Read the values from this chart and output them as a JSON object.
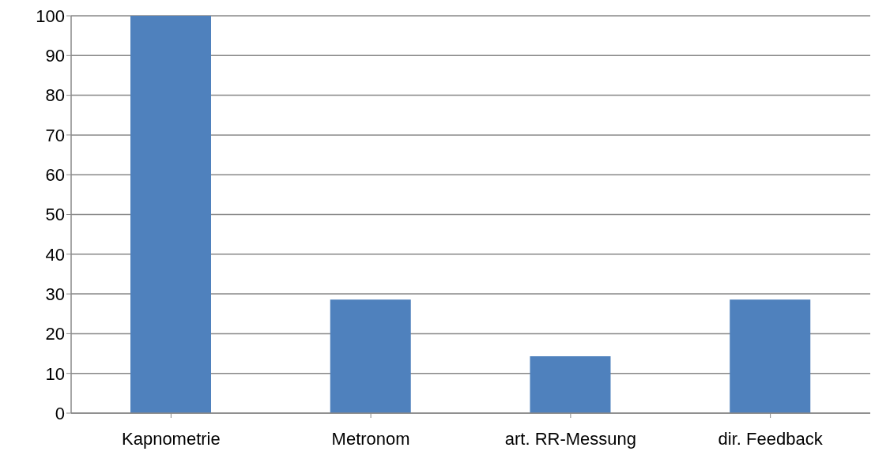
{
  "chart_data": {
    "type": "bar",
    "categories": [
      "Kapnometrie",
      "Metronom",
      "art. RR-Messung",
      "dir. Feedback"
    ],
    "values": [
      100,
      28.6,
      14.3,
      28.6
    ],
    "color": "#4f81bd",
    "ylim": [
      0,
      100
    ],
    "yticks": [
      0,
      10,
      20,
      30,
      40,
      50,
      60,
      70,
      80,
      90,
      100
    ],
    "grid": "y"
  }
}
